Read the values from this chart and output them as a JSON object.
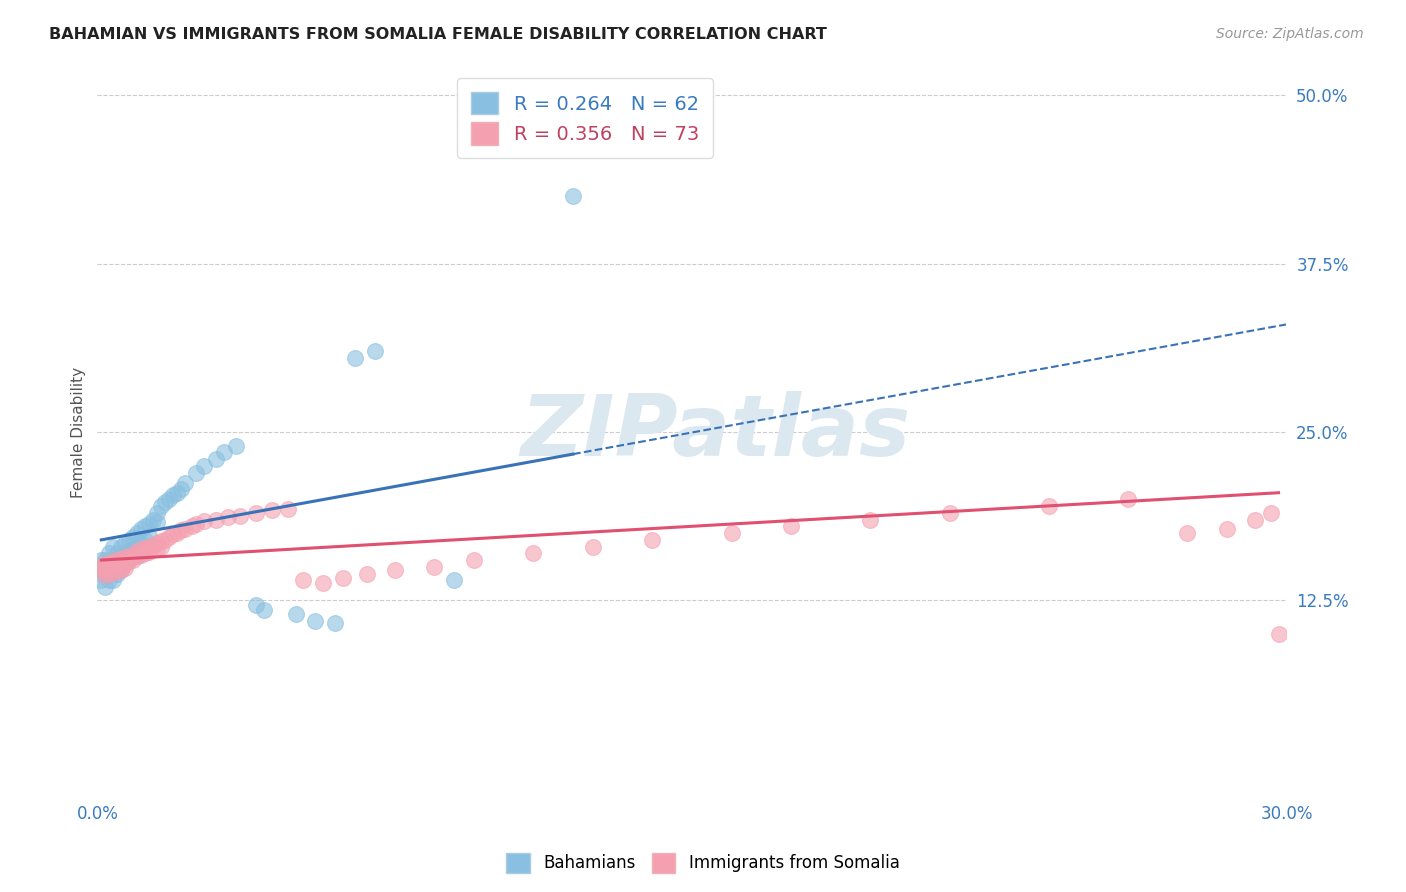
{
  "title": "BAHAMIAN VS IMMIGRANTS FROM SOMALIA FEMALE DISABILITY CORRELATION CHART",
  "source": "Source: ZipAtlas.com",
  "ylabel": "Female Disability",
  "xlim": [
    0.0,
    0.3
  ],
  "ylim": [
    -0.02,
    0.52
  ],
  "xtick_vals": [
    0.0,
    0.05,
    0.1,
    0.15,
    0.2,
    0.25,
    0.3
  ],
  "xtick_labels": [
    "0.0%",
    "",
    "",
    "",
    "",
    "",
    "30.0%"
  ],
  "ytick_vals_right": [
    0.125,
    0.25,
    0.375,
    0.5
  ],
  "ytick_labels_right": [
    "12.5%",
    "25.0%",
    "37.5%",
    "50.0%"
  ],
  "R_bahamian": 0.264,
  "N_bahamian": 62,
  "R_somalia": 0.356,
  "N_somalia": 73,
  "color_bahamian": "#89bfe0",
  "color_somalia": "#f4a0b0",
  "trendline_bahamian_color": "#3a72b8",
  "trendline_somalia_color": "#e05070",
  "background_color": "#ffffff",
  "grid_color": "#cccccc",
  "watermark": "ZIPatlas",
  "watermark_color": "#dce8f0",
  "legend_label_bahamian": "Bahamians",
  "legend_label_somalia": "Immigrants from Somalia",
  "bahamian_x": [
    0.001,
    0.001,
    0.001,
    0.002,
    0.002,
    0.002,
    0.002,
    0.003,
    0.003,
    0.003,
    0.003,
    0.004,
    0.004,
    0.004,
    0.004,
    0.005,
    0.005,
    0.005,
    0.006,
    0.006,
    0.006,
    0.007,
    0.007,
    0.007,
    0.008,
    0.008,
    0.008,
    0.009,
    0.009,
    0.01,
    0.01,
    0.01,
    0.011,
    0.011,
    0.012,
    0.012,
    0.013,
    0.013,
    0.014,
    0.015,
    0.015,
    0.016,
    0.017,
    0.018,
    0.019,
    0.02,
    0.021,
    0.022,
    0.025,
    0.027,
    0.03,
    0.032,
    0.035,
    0.04,
    0.042,
    0.05,
    0.055,
    0.06,
    0.065,
    0.07,
    0.09,
    0.12
  ],
  "bahamian_y": [
    0.155,
    0.145,
    0.14,
    0.155,
    0.15,
    0.145,
    0.135,
    0.16,
    0.15,
    0.145,
    0.14,
    0.165,
    0.155,
    0.148,
    0.14,
    0.16,
    0.153,
    0.145,
    0.165,
    0.155,
    0.148,
    0.168,
    0.16,
    0.152,
    0.17,
    0.162,
    0.155,
    0.172,
    0.163,
    0.175,
    0.165,
    0.158,
    0.178,
    0.168,
    0.18,
    0.17,
    0.182,
    0.173,
    0.185,
    0.19,
    0.183,
    0.195,
    0.198,
    0.2,
    0.203,
    0.205,
    0.208,
    0.212,
    0.22,
    0.225,
    0.23,
    0.235,
    0.24,
    0.122,
    0.118,
    0.115,
    0.11,
    0.108,
    0.305,
    0.31,
    0.14,
    0.425
  ],
  "somalia_x": [
    0.001,
    0.001,
    0.002,
    0.002,
    0.002,
    0.003,
    0.003,
    0.003,
    0.004,
    0.004,
    0.004,
    0.005,
    0.005,
    0.005,
    0.006,
    0.006,
    0.006,
    0.007,
    0.007,
    0.007,
    0.008,
    0.008,
    0.009,
    0.009,
    0.01,
    0.01,
    0.011,
    0.011,
    0.012,
    0.012,
    0.013,
    0.013,
    0.014,
    0.015,
    0.015,
    0.016,
    0.016,
    0.017,
    0.018,
    0.019,
    0.02,
    0.021,
    0.022,
    0.024,
    0.025,
    0.027,
    0.03,
    0.033,
    0.036,
    0.04,
    0.044,
    0.048,
    0.052,
    0.057,
    0.062,
    0.068,
    0.075,
    0.085,
    0.095,
    0.11,
    0.125,
    0.14,
    0.16,
    0.175,
    0.195,
    0.215,
    0.24,
    0.26,
    0.275,
    0.285,
    0.292,
    0.296,
    0.298
  ],
  "somalia_y": [
    0.15,
    0.148,
    0.152,
    0.148,
    0.144,
    0.153,
    0.149,
    0.145,
    0.154,
    0.15,
    0.146,
    0.155,
    0.151,
    0.147,
    0.156,
    0.152,
    0.148,
    0.157,
    0.153,
    0.149,
    0.158,
    0.154,
    0.159,
    0.155,
    0.162,
    0.158,
    0.163,
    0.159,
    0.164,
    0.16,
    0.165,
    0.161,
    0.166,
    0.168,
    0.164,
    0.169,
    0.165,
    0.17,
    0.172,
    0.174,
    0.175,
    0.177,
    0.178,
    0.18,
    0.182,
    0.184,
    0.185,
    0.187,
    0.188,
    0.19,
    0.192,
    0.193,
    0.14,
    0.138,
    0.142,
    0.145,
    0.148,
    0.15,
    0.155,
    0.16,
    0.165,
    0.17,
    0.175,
    0.18,
    0.185,
    0.19,
    0.195,
    0.2,
    0.175,
    0.178,
    0.185,
    0.19,
    0.1
  ],
  "trendline_b_x0": 0.001,
  "trendline_b_x_end_solid": 0.12,
  "trendline_b_x1": 0.3,
  "trendline_b_y0": 0.17,
  "trendline_b_y1": 0.33,
  "trendline_s_x0": 0.001,
  "trendline_s_x1": 0.298,
  "trendline_s_y0": 0.155,
  "trendline_s_y1": 0.205
}
